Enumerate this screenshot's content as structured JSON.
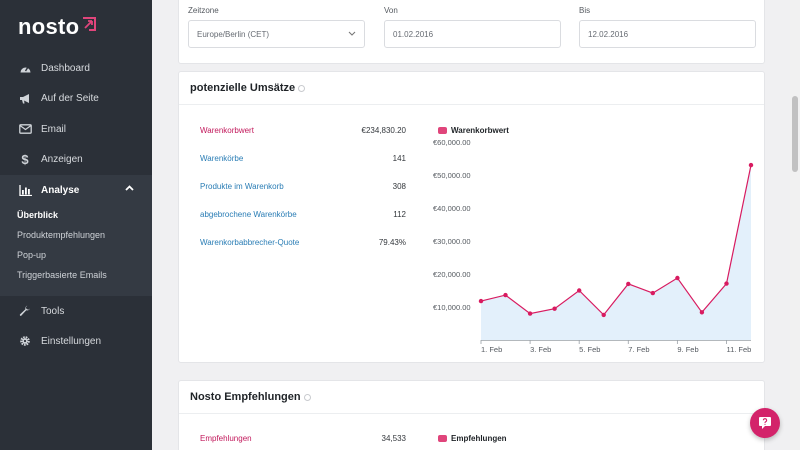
{
  "brand": {
    "name": "nosto",
    "accent": "#e0457b"
  },
  "sidebar": {
    "items": [
      {
        "label": "Dashboard",
        "icon": "dashboard-icon"
      },
      {
        "label": "Auf der Seite",
        "icon": "megaphone-icon"
      },
      {
        "label": "Email",
        "icon": "envelope-icon"
      },
      {
        "label": "Anzeigen",
        "icon": "dollar-icon"
      },
      {
        "label": "Analyse",
        "icon": "bar-chart-icon"
      },
      {
        "label": "Tools",
        "icon": "wrench-icon"
      },
      {
        "label": "Einstellungen",
        "icon": "gear-icon"
      }
    ],
    "submenu": [
      "Überblick",
      "Produktempfehlungen",
      "Pop-up",
      "Triggerbasierte Emails"
    ]
  },
  "filters": {
    "timezone_label": "Zeitzone",
    "timezone_value": "Europe/Berlin (CET)",
    "from_label": "Von",
    "from_value": "01.02.2016",
    "to_label": "Bis",
    "to_value": "12.02.2016"
  },
  "umsatz": {
    "title": "potenzielle Umsätze",
    "metrics": [
      {
        "label": "Warenkorbwert",
        "value": "€234,830.20"
      },
      {
        "label": "Warenkörbe",
        "value": "141"
      },
      {
        "label": "Produkte im Warenkorb",
        "value": "308"
      },
      {
        "label": "abgebrochene Warenkörbe",
        "value": "112"
      },
      {
        "label": "Warenkorbabbrecher-Quote",
        "value": "79.43%"
      }
    ],
    "legend": "Warenkorbwert"
  },
  "empfehlungen": {
    "title": "Nosto Empfehlungen",
    "metric_label": "Empfehlungen",
    "metric_value": "34,533",
    "legend": "Empfehlungen"
  },
  "chart_data": {
    "type": "area",
    "title": "",
    "xlabel": "",
    "ylabel": "",
    "x": [
      1,
      2,
      3,
      4,
      5,
      6,
      7,
      8,
      9,
      10,
      11,
      12
    ],
    "xticks": [
      1,
      3,
      5,
      7,
      9,
      11
    ],
    "xtick_labels": [
      "1. Feb",
      "3. Feb",
      "5. Feb",
      "7. Feb",
      "9. Feb",
      "11. Feb"
    ],
    "ylim": [
      0,
      60000
    ],
    "yticks": [
      10000,
      20000,
      30000,
      40000,
      50000,
      60000
    ],
    "ytick_labels": [
      "€10,000.00",
      "€20,000.00",
      "€30,000.00",
      "€40,000.00",
      "€50,000.00",
      "€60,000.00"
    ],
    "series": [
      {
        "name": "Warenkorbwert",
        "values": [
          11800,
          13600,
          8000,
          9500,
          15000,
          7600,
          17000,
          14200,
          18800,
          8400,
          17100,
          53000
        ]
      }
    ],
    "colors": {
      "line": "#d81b60",
      "fill": "#e3f0fb"
    }
  }
}
